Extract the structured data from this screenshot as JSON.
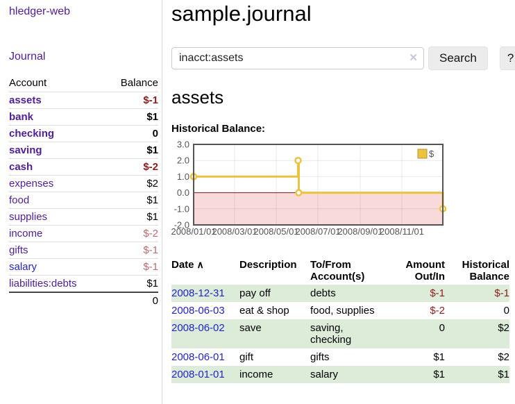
{
  "sidebar": {
    "brand": "hledger-web",
    "journal_link": "Journal",
    "accounts_table": {
      "account_header": "Account",
      "balance_header": "Balance",
      "rows": [
        {
          "name": "assets",
          "balance": "$-1",
          "depth": 1,
          "emph": true,
          "neg": "strong",
          "link_style": ""
        },
        {
          "name": "bank",
          "balance": "$1",
          "depth": 2,
          "emph": true,
          "neg": "",
          "link_style": ""
        },
        {
          "name": "checking",
          "balance": "0",
          "depth": 3,
          "emph": true,
          "neg": "",
          "link_style": ""
        },
        {
          "name": "saving",
          "balance": "$1",
          "depth": 3,
          "emph": true,
          "neg": "",
          "link_style": ""
        },
        {
          "name": "cash",
          "balance": "$-2",
          "depth": 2,
          "emph": true,
          "neg": "strong",
          "link_style": ""
        },
        {
          "name": "expenses",
          "balance": "$2",
          "depth": 1,
          "emph": false,
          "neg": "",
          "link_style": ""
        },
        {
          "name": "food",
          "balance": "$1",
          "depth": 2,
          "emph": false,
          "neg": "",
          "link_style": ""
        },
        {
          "name": "supplies",
          "balance": "$1",
          "depth": 2,
          "emph": false,
          "neg": "",
          "link_style": ""
        },
        {
          "name": "income",
          "balance": "$-2",
          "depth": 1,
          "emph": false,
          "neg": "light",
          "link_style": ""
        },
        {
          "name": "gifts",
          "balance": "$-1",
          "depth": 2,
          "emph": false,
          "neg": "light",
          "link_style": ""
        },
        {
          "name": "salary",
          "balance": "$-1",
          "depth": 2,
          "emph": false,
          "neg": "light",
          "link_style": "blue"
        },
        {
          "name": "liabilities:debts",
          "balance": "$1",
          "depth": 1,
          "emph": false,
          "neg": "",
          "link_style": ""
        }
      ],
      "total": "0"
    }
  },
  "main": {
    "title": "sample.journal",
    "search": {
      "value": "inacct:assets",
      "clear_icon": "✕",
      "button_label": "Search",
      "help_label": "?"
    },
    "account_heading": "assets",
    "chart_label": "Historical Balance:"
  },
  "chart_data": {
    "type": "line",
    "step": true,
    "title": "Historical Balance",
    "legend_position": "top-right",
    "grid": true,
    "series": [
      {
        "name": "$",
        "color": "#edc240",
        "points": [
          {
            "date": "2008-01-01",
            "day": 0,
            "value": 1
          },
          {
            "date": "2008-06-02",
            "day": 153,
            "value": 2
          },
          {
            "date": "2008-06-03",
            "day": 154,
            "value": 0
          },
          {
            "date": "2008-12-31",
            "day": 365,
            "value": -1
          }
        ]
      }
    ],
    "x_ticks": [
      {
        "label": "2008/01/01",
        "day": 0
      },
      {
        "label": "2008/03/01",
        "day": 60
      },
      {
        "label": "2008/05/01",
        "day": 121
      },
      {
        "label": "2008/07/01",
        "day": 182
      },
      {
        "label": "2008/09/01",
        "day": 244
      },
      {
        "label": "2008/11/01",
        "day": 305
      }
    ],
    "y_tick_labels": [
      "3.0",
      "2.0",
      "1.0",
      "0.0",
      "-1.0",
      "-2.0"
    ],
    "ylim": [
      -2,
      3
    ],
    "x_range_days": [
      0,
      365
    ],
    "zero_line_color": "#8b1010",
    "negative_region_color": "#f9dada",
    "border_color": "#545454",
    "tick_label_color": "#545454"
  },
  "transactions": {
    "headers": {
      "date": "Date",
      "sort_icon": "∧",
      "description": "Description",
      "tofrom": "To/From\nAccount(s)",
      "amount": "Amount\nOut/In",
      "balance": "Historical\nBalance"
    },
    "rows": [
      {
        "date": "2008-12-31",
        "description": "pay off",
        "tofrom": "debts",
        "amount": "$-1",
        "balance": "$-1"
      },
      {
        "date": "2008-06-03",
        "description": "eat & shop",
        "tofrom": "food, supplies",
        "amount": "$-2",
        "balance": "0"
      },
      {
        "date": "2008-06-02",
        "description": "save",
        "tofrom": "saving,\nchecking",
        "amount": "0",
        "balance": "$2"
      },
      {
        "date": "2008-06-01",
        "description": "gift",
        "tofrom": "gifts",
        "amount": "$1",
        "balance": "$2"
      },
      {
        "date": "2008-01-01",
        "description": "income",
        "tofrom": "salary",
        "amount": "$1",
        "balance": "$1"
      }
    ]
  }
}
